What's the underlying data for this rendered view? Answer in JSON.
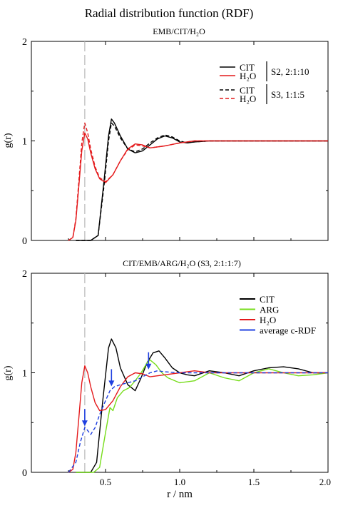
{
  "figure": {
    "title": "Radial distribution function (RDF)",
    "xlabel": "r / nm"
  },
  "chart_data": [
    {
      "type": "line",
      "title": "EMB/CIT/H₂O",
      "xlabel": "",
      "ylabel": "g(r)",
      "xlim": [
        0,
        2.0
      ],
      "ylim": [
        0,
        2
      ],
      "yticks": [
        "0",
        "1",
        "2"
      ],
      "xticks": [],
      "grid": false,
      "legend_position": "top-right",
      "reference_line_x": 0.36,
      "legend_groups": [
        {
          "label": "S2, 2:1:10",
          "entries": [
            "CIT",
            "H₂O"
          ]
        },
        {
          "label": "S3, 1:1:5",
          "entries": [
            "CIT",
            "H₂O"
          ]
        }
      ],
      "series": [
        {
          "name": "CIT",
          "group": "S2, 2:1:10",
          "color": "#000000",
          "dash": "solid",
          "x": [
            0.3,
            0.4,
            0.45,
            0.49,
            0.52,
            0.54,
            0.56,
            0.6,
            0.65,
            0.7,
            0.75,
            0.8,
            0.85,
            0.9,
            0.95,
            1.0,
            1.05,
            1.1,
            1.2,
            1.4,
            1.6,
            1.8,
            2.0
          ],
          "y": [
            0.0,
            0.0,
            0.05,
            0.6,
            1.05,
            1.22,
            1.18,
            1.05,
            0.92,
            0.88,
            0.9,
            0.96,
            1.02,
            1.05,
            1.03,
            0.99,
            0.98,
            0.99,
            1.0,
            1.0,
            1.0,
            1.0,
            1.0
          ]
        },
        {
          "name": "H₂O",
          "group": "S2, 2:1:10",
          "color": "#e41a1c",
          "dash": "solid",
          "x": [
            0.25,
            0.28,
            0.3,
            0.32,
            0.34,
            0.36,
            0.38,
            0.4,
            0.43,
            0.46,
            0.5,
            0.55,
            0.6,
            0.65,
            0.7,
            0.75,
            0.8,
            0.9,
            1.0,
            1.1,
            1.2,
            1.4,
            1.6,
            1.8,
            2.0
          ],
          "y": [
            0.0,
            0.03,
            0.2,
            0.55,
            0.9,
            1.08,
            1.02,
            0.88,
            0.72,
            0.62,
            0.58,
            0.66,
            0.8,
            0.92,
            0.97,
            0.96,
            0.93,
            0.95,
            0.98,
            1.0,
            1.0,
            1.0,
            1.0,
            1.0,
            1.0
          ]
        },
        {
          "name": "CIT",
          "group": "S3, 1:1:5",
          "color": "#000000",
          "dash": "dashed",
          "x": [
            0.3,
            0.4,
            0.45,
            0.49,
            0.52,
            0.54,
            0.56,
            0.6,
            0.65,
            0.7,
            0.75,
            0.8,
            0.85,
            0.9,
            0.95,
            1.0,
            1.05,
            1.1,
            1.2,
            1.4,
            1.6,
            1.8,
            2.0
          ],
          "y": [
            0.0,
            0.0,
            0.05,
            0.55,
            1.0,
            1.18,
            1.15,
            1.03,
            0.92,
            0.89,
            0.92,
            0.98,
            1.03,
            1.06,
            1.04,
            1.0,
            0.98,
            0.99,
            1.0,
            1.0,
            1.0,
            1.0,
            1.0
          ]
        },
        {
          "name": "H₂O",
          "group": "S3, 1:1:5",
          "color": "#e41a1c",
          "dash": "dashed",
          "x": [
            0.25,
            0.28,
            0.3,
            0.32,
            0.34,
            0.36,
            0.38,
            0.4,
            0.43,
            0.46,
            0.5,
            0.55,
            0.6,
            0.65,
            0.7,
            0.75,
            0.8,
            0.9,
            1.0,
            1.1,
            1.2,
            1.4,
            1.6,
            1.8,
            2.0
          ],
          "y": [
            0.0,
            0.03,
            0.22,
            0.6,
            0.98,
            1.18,
            1.08,
            0.92,
            0.74,
            0.63,
            0.59,
            0.66,
            0.8,
            0.91,
            0.96,
            0.95,
            0.93,
            0.95,
            0.98,
            1.0,
            1.0,
            1.0,
            1.0,
            1.0,
            1.0
          ]
        }
      ]
    },
    {
      "type": "line",
      "title": "CIT/EMB/ARG/H₂O (S3, 2:1:1:7)",
      "xlabel": "r / nm",
      "ylabel": "g(r)",
      "xlim": [
        0,
        2.0
      ],
      "ylim": [
        0,
        2
      ],
      "yticks": [
        "0",
        "1",
        "2"
      ],
      "xticks": [
        "0.5",
        "1.0",
        "1.5",
        "2.0"
      ],
      "xtick_values": [
        0.5,
        1.0,
        1.5,
        2.0
      ],
      "grid": false,
      "legend_position": "right",
      "reference_line_x": 0.36,
      "series": [
        {
          "name": "CIT",
          "color": "#000000",
          "dash": "solid",
          "x": [
            0.3,
            0.4,
            0.44,
            0.48,
            0.52,
            0.54,
            0.57,
            0.6,
            0.65,
            0.7,
            0.74,
            0.78,
            0.82,
            0.86,
            0.9,
            0.95,
            1.0,
            1.05,
            1.1,
            1.2,
            1.3,
            1.4,
            1.5,
            1.6,
            1.7,
            1.8,
            1.9,
            2.0
          ],
          "y": [
            0.0,
            0.0,
            0.1,
            0.7,
            1.25,
            1.34,
            1.25,
            1.05,
            0.88,
            0.82,
            0.95,
            1.1,
            1.2,
            1.22,
            1.15,
            1.05,
            1.0,
            0.98,
            0.97,
            1.02,
            1.0,
            0.97,
            1.02,
            1.05,
            1.06,
            1.04,
            1.0,
            1.0
          ]
        },
        {
          "name": "ARG",
          "color": "#77dd1b",
          "dash": "solid",
          "x": [
            0.3,
            0.42,
            0.46,
            0.5,
            0.53,
            0.55,
            0.58,
            0.62,
            0.66,
            0.7,
            0.74,
            0.78,
            0.8,
            0.84,
            0.88,
            0.92,
            1.0,
            1.1,
            1.2,
            1.3,
            1.4,
            1.5,
            1.6,
            1.7,
            1.8,
            1.9,
            2.0
          ],
          "y": [
            0.0,
            0.0,
            0.05,
            0.4,
            0.65,
            0.62,
            0.75,
            0.82,
            0.85,
            0.92,
            1.0,
            1.1,
            1.13,
            1.08,
            1.0,
            0.95,
            0.9,
            0.92,
            1.0,
            0.95,
            0.92,
            1.0,
            1.04,
            1.0,
            0.97,
            0.98,
            1.0
          ]
        },
        {
          "name": "H₂O",
          "color": "#e41a1c",
          "dash": "solid",
          "x": [
            0.25,
            0.28,
            0.3,
            0.32,
            0.34,
            0.36,
            0.38,
            0.4,
            0.43,
            0.46,
            0.5,
            0.55,
            0.6,
            0.65,
            0.7,
            0.75,
            0.8,
            0.9,
            1.0,
            1.1,
            1.2,
            1.4,
            1.6,
            1.8,
            2.0
          ],
          "y": [
            0.0,
            0.03,
            0.2,
            0.55,
            0.9,
            1.07,
            1.0,
            0.86,
            0.7,
            0.62,
            0.63,
            0.72,
            0.86,
            0.96,
            1.0,
            0.99,
            0.96,
            0.98,
            1.0,
            1.02,
            1.0,
            1.0,
            1.0,
            1.0,
            1.0
          ]
        },
        {
          "name": "average c-RDF",
          "color": "#1f3fe0",
          "dash": "dashed",
          "x": [
            0.25,
            0.3,
            0.33,
            0.36,
            0.38,
            0.4,
            0.43,
            0.46,
            0.5,
            0.53,
            0.56,
            0.6,
            0.65,
            0.7,
            0.75,
            0.8,
            0.85,
            0.9,
            1.0,
            1.2,
            1.4,
            1.6,
            1.8,
            2.0
          ],
          "y": [
            0.0,
            0.1,
            0.3,
            0.45,
            0.42,
            0.38,
            0.45,
            0.58,
            0.72,
            0.82,
            0.86,
            0.88,
            0.9,
            0.92,
            0.96,
            1.0,
            1.02,
            1.01,
            1.0,
            1.0,
            1.0,
            1.0,
            1.0,
            1.0
          ]
        }
      ],
      "arrows": [
        {
          "series": "average c-RDF",
          "x": 0.36,
          "y": 0.45
        },
        {
          "series": "average c-RDF",
          "x": 0.54,
          "y": 0.85
        },
        {
          "series": "average c-RDF",
          "x": 0.79,
          "y": 1.02
        }
      ]
    }
  ]
}
